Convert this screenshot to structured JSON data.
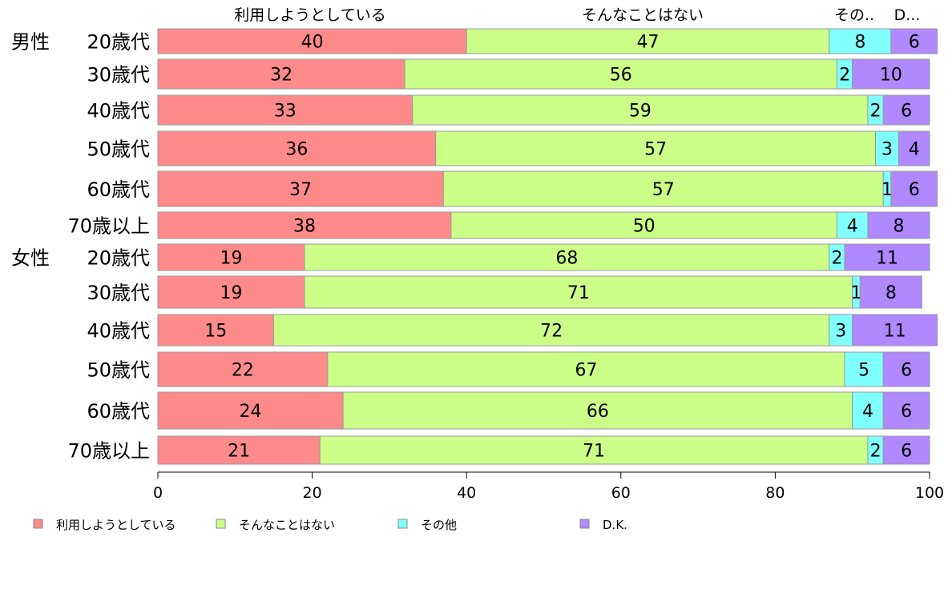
{
  "chart_data": {
    "type": "bar",
    "orientation": "horizontal",
    "stacked": true,
    "xlim": [
      0,
      100
    ],
    "x_ticks": [
      "0",
      "20",
      "40",
      "60",
      "80",
      "100"
    ],
    "column_headers": [
      "利用しようとしている",
      "そんなことはない",
      "その..",
      "D..."
    ],
    "group_labels": [
      "男性",
      "女性"
    ],
    "categories": [
      "20歳代",
      "30歳代",
      "40歳代",
      "50歳代",
      "60歳代",
      "70歳以上",
      "20歳代",
      "30歳代",
      "40歳代",
      "50歳代",
      "60歳代",
      "70歳以上"
    ],
    "series": [
      {
        "name": "利用しようとしている",
        "color": "#ff8a8a",
        "values": [
          40,
          32,
          33,
          36,
          37,
          38,
          19,
          19,
          15,
          22,
          24,
          21
        ]
      },
      {
        "name": "そんなことはない",
        "color": "#ccff88",
        "values": [
          47,
          56,
          59,
          57,
          57,
          50,
          68,
          71,
          72,
          67,
          66,
          71
        ]
      },
      {
        "name": "その他",
        "color": "#80ffff",
        "values": [
          8,
          2,
          2,
          3,
          1,
          4,
          2,
          1,
          3,
          5,
          4,
          2
        ]
      },
      {
        "name": "D.K.",
        "color": "#b088ff",
        "values": [
          6,
          10,
          6,
          4,
          6,
          8,
          11,
          8,
          11,
          6,
          6,
          6
        ]
      }
    ],
    "legend_position": "bottom"
  }
}
